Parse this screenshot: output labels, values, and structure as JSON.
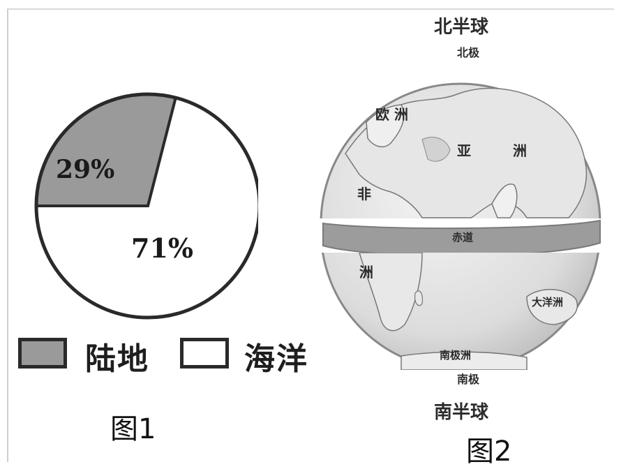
{
  "figure1": {
    "caption": "图1",
    "chart_data": {
      "type": "pie",
      "categories": [
        "陆地",
        "海洋"
      ],
      "values": [
        29,
        71
      ],
      "data_labels": [
        "29%",
        "71%"
      ],
      "colors": [
        "#9a9a9a",
        "#ffffff"
      ]
    },
    "legend": [
      {
        "label": "陆地",
        "color": "#9a9a9a"
      },
      {
        "label": "海洋",
        "color": "#ffffff"
      }
    ]
  },
  "figure2": {
    "caption": "图2",
    "top_label": "北半球",
    "north_pole": "北极",
    "bottom_label": "南半球",
    "south_pole": "南极",
    "labels": {
      "europe": "欧 洲",
      "asia_1": "亚",
      "asia_2": "洲",
      "africa_north": "非",
      "africa_south": "洲",
      "equator": "赤道",
      "oceania": "大洋洲",
      "antarctica": "南极洲"
    }
  }
}
